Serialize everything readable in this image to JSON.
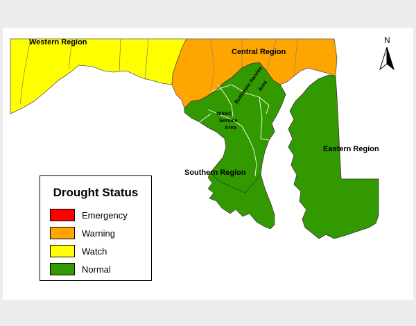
{
  "colors": {
    "emergency": "#ff0000",
    "warning": "#ffa500",
    "watch": "#ffff00",
    "normal": "#339900",
    "background": "#ececec",
    "map_background": "#ffffff"
  },
  "regions": {
    "western": {
      "label": "Western Region",
      "status": "Watch"
    },
    "central": {
      "label": "Central Region",
      "status": "Warning"
    },
    "southern": {
      "label": "Southern Region",
      "status": "Normal"
    },
    "eastern": {
      "label": "Eastern Region",
      "status": "Normal"
    }
  },
  "service_areas": {
    "wssc_line1": "WSSC",
    "wssc_line2": "Service",
    "wssc_line3": "Area",
    "baltimore_line1": "Baltimore Service",
    "baltimore_line2": "Area"
  },
  "north_arrow": {
    "letter": "N",
    "icon": "north-arrow-icon"
  },
  "legend": {
    "title": "Drought Status",
    "items": [
      {
        "label": "Emergency",
        "color": "#ff0000"
      },
      {
        "label": "Warning",
        "color": "#ffa500"
      },
      {
        "label": "Watch",
        "color": "#ffff00"
      },
      {
        "label": "Normal",
        "color": "#339900"
      }
    ]
  }
}
